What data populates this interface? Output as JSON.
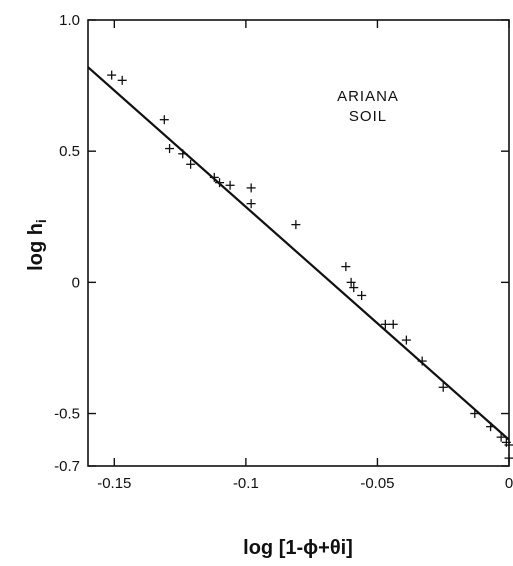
{
  "chart_data": {
    "type": "scatter",
    "annotation": [
      "ARIANA",
      "SOIL"
    ],
    "xlabel": {
      "main": "log",
      "expr": "[1-ϕ+θi]"
    },
    "ylabel": {
      "main": "log h",
      "sub": "i"
    },
    "xlim": [
      -0.16,
      0
    ],
    "ylim": [
      -0.7,
      1.0
    ],
    "x_ticks": [
      {
        "value": -0.15,
        "label": "-0.15"
      },
      {
        "value": -0.1,
        "label": "-0.1"
      },
      {
        "value": -0.05,
        "label": "-0.05"
      },
      {
        "value": 0,
        "label": "0"
      }
    ],
    "y_ticks": [
      {
        "value": 1.0,
        "label": "1.0"
      },
      {
        "value": 0.5,
        "label": "0.5"
      },
      {
        "value": 0,
        "label": "0"
      },
      {
        "value": -0.5,
        "label": "-0.5"
      },
      {
        "value": -0.7,
        "label": "-0.7"
      }
    ],
    "series": [
      {
        "marker": "+",
        "points": [
          {
            "x": -0.151,
            "y": 0.79
          },
          {
            "x": -0.147,
            "y": 0.77
          },
          {
            "x": -0.131,
            "y": 0.62
          },
          {
            "x": -0.129,
            "y": 0.51
          },
          {
            "x": -0.124,
            "y": 0.49
          },
          {
            "x": -0.121,
            "y": 0.45
          },
          {
            "x": -0.112,
            "y": 0.4
          },
          {
            "x": -0.11,
            "y": 0.38
          },
          {
            "x": -0.106,
            "y": 0.37
          },
          {
            "x": -0.098,
            "y": 0.36
          },
          {
            "x": -0.098,
            "y": 0.3
          },
          {
            "x": -0.081,
            "y": 0.22
          },
          {
            "x": -0.062,
            "y": 0.06
          },
          {
            "x": -0.06,
            "y": 0.0
          },
          {
            "x": -0.059,
            "y": -0.02
          },
          {
            "x": -0.056,
            "y": -0.05
          },
          {
            "x": -0.047,
            "y": -0.16
          },
          {
            "x": -0.044,
            "y": -0.16
          },
          {
            "x": -0.039,
            "y": -0.22
          },
          {
            "x": -0.033,
            "y": -0.3
          },
          {
            "x": -0.025,
            "y": -0.4
          },
          {
            "x": -0.013,
            "y": -0.5
          },
          {
            "x": -0.007,
            "y": -0.55
          },
          {
            "x": -0.003,
            "y": -0.59
          },
          {
            "x": -0.001,
            "y": -0.61
          },
          {
            "x": 0.0,
            "y": -0.62
          },
          {
            "x": 0.0,
            "y": -0.67
          }
        ]
      }
    ],
    "fit_line": {
      "x": [
        -0.16,
        0.0
      ],
      "y": [
        0.82,
        -0.6
      ]
    }
  },
  "colors": {
    "ink": "#111111",
    "background": "#ffffff"
  }
}
